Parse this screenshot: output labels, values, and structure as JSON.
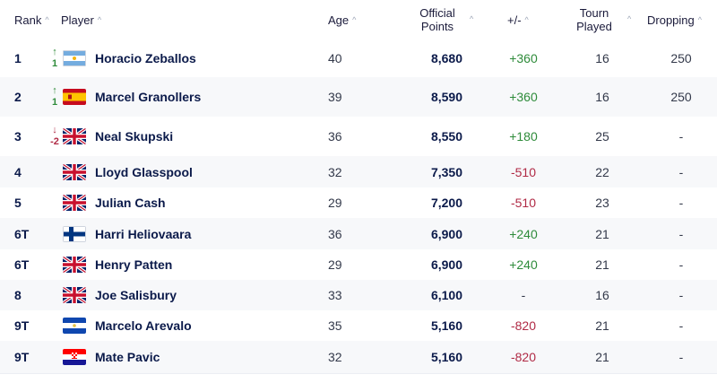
{
  "headers": {
    "rank": "Rank",
    "player": "Player",
    "age": "Age",
    "points_line1": "Official",
    "points_line2": "Points",
    "delta": "+/-",
    "played_line1": "Tourn",
    "played_line2": "Played",
    "dropping": "Dropping",
    "sort_icon": "^"
  },
  "rows": [
    {
      "rank": "1",
      "movement_dir": "up",
      "movement_arrow": "↑",
      "movement_value": "1",
      "flag": "argentina",
      "name": "Horacio Zeballos",
      "age": "40",
      "points": "8,680",
      "delta": "+360",
      "delta_type": "pos",
      "played": "16",
      "dropping": "250"
    },
    {
      "rank": "2",
      "movement_dir": "up",
      "movement_arrow": "↑",
      "movement_value": "1",
      "flag": "spain",
      "name": "Marcel Granollers",
      "age": "39",
      "points": "8,590",
      "delta": "+360",
      "delta_type": "pos",
      "played": "16",
      "dropping": "250"
    },
    {
      "rank": "3",
      "movement_dir": "down",
      "movement_arrow": "↓",
      "movement_value": "-2",
      "flag": "uk",
      "name": "Neal Skupski",
      "age": "36",
      "points": "8,550",
      "delta": "+180",
      "delta_type": "pos",
      "played": "25",
      "dropping": "-"
    },
    {
      "rank": "4",
      "movement_dir": "none",
      "movement_arrow": "",
      "movement_value": "",
      "flag": "uk",
      "name": "Lloyd Glasspool",
      "age": "32",
      "points": "7,350",
      "delta": "-510",
      "delta_type": "neg",
      "played": "22",
      "dropping": "-"
    },
    {
      "rank": "5",
      "movement_dir": "none",
      "movement_arrow": "",
      "movement_value": "",
      "flag": "uk",
      "name": "Julian Cash",
      "age": "29",
      "points": "7,200",
      "delta": "-510",
      "delta_type": "neg",
      "played": "23",
      "dropping": "-"
    },
    {
      "rank": "6T",
      "movement_dir": "none",
      "movement_arrow": "",
      "movement_value": "",
      "flag": "finland",
      "name": "Harri Heliovaara",
      "age": "36",
      "points": "6,900",
      "delta": "+240",
      "delta_type": "pos",
      "played": "21",
      "dropping": "-"
    },
    {
      "rank": "6T",
      "movement_dir": "none",
      "movement_arrow": "",
      "movement_value": "",
      "flag": "uk",
      "name": "Henry Patten",
      "age": "29",
      "points": "6,900",
      "delta": "+240",
      "delta_type": "pos",
      "played": "21",
      "dropping": "-"
    },
    {
      "rank": "8",
      "movement_dir": "none",
      "movement_arrow": "",
      "movement_value": "",
      "flag": "uk",
      "name": "Joe Salisbury",
      "age": "33",
      "points": "6,100",
      "delta": "-",
      "delta_type": "none",
      "played": "16",
      "dropping": "-"
    },
    {
      "rank": "9T",
      "movement_dir": "none",
      "movement_arrow": "",
      "movement_value": "",
      "flag": "el-salvador",
      "name": "Marcelo Arevalo",
      "age": "35",
      "points": "5,160",
      "delta": "-820",
      "delta_type": "neg",
      "played": "21",
      "dropping": "-"
    },
    {
      "rank": "9T",
      "movement_dir": "none",
      "movement_arrow": "",
      "movement_value": "",
      "flag": "croatia",
      "name": "Mate Pavic",
      "age": "32",
      "points": "5,160",
      "delta": "-820",
      "delta_type": "neg",
      "played": "21",
      "dropping": "-"
    }
  ],
  "colors": {
    "positive": "#2e8b3a",
    "negative": "#b02a45",
    "name": "#0b1a4a"
  }
}
